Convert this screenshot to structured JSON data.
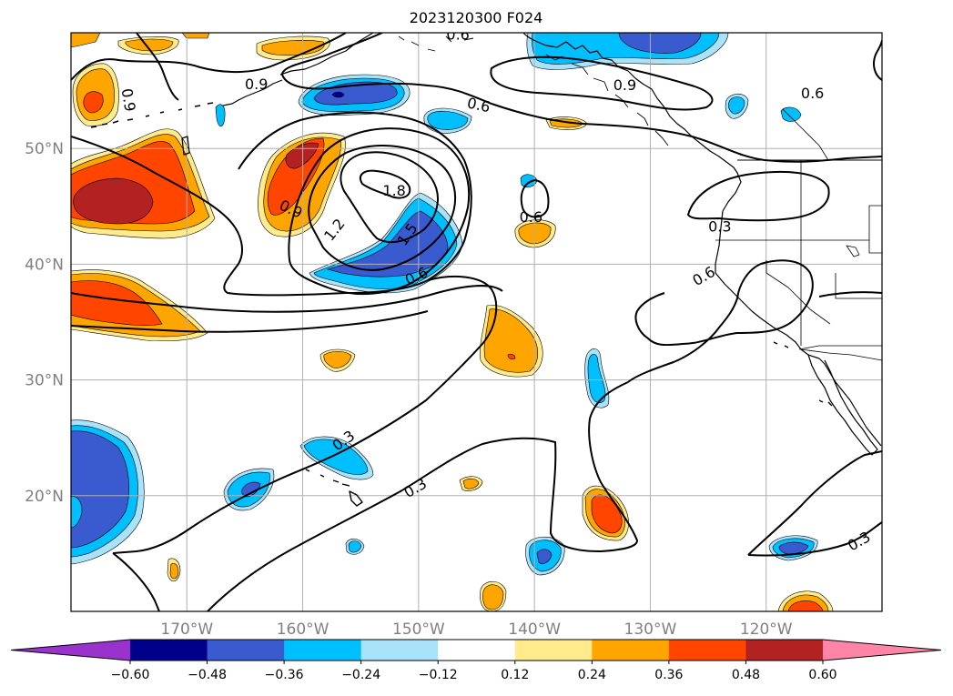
{
  "title": "2023120300 F024",
  "map": {
    "lon_range": [
      -180,
      -110
    ],
    "lat_range": [
      10,
      60
    ],
    "gridlines": true,
    "lon_ticks": [
      {
        "value": -170,
        "label": "170°W"
      },
      {
        "value": -160,
        "label": "160°W"
      },
      {
        "value": -150,
        "label": "150°W"
      },
      {
        "value": -140,
        "label": "140°W"
      },
      {
        "value": -130,
        "label": "130°W"
      },
      {
        "value": -120,
        "label": "120°W"
      }
    ],
    "lat_ticks": [
      {
        "value": 50,
        "label": "50°N"
      },
      {
        "value": 40,
        "label": "40°N"
      },
      {
        "value": 30,
        "label": "30°N"
      },
      {
        "value": 20,
        "label": "20°N"
      }
    ],
    "contour_labels": [
      {
        "text": "0.6",
        "lon": -146.6,
        "lat": 59.9,
        "angle": 0
      },
      {
        "text": "0.9",
        "lon": -164.0,
        "lat": 55.6,
        "angle": 0
      },
      {
        "text": "0.9",
        "lon": -175.0,
        "lat": 54.2,
        "angle": 80
      },
      {
        "text": "0.6",
        "lon": -144.8,
        "lat": 53.8,
        "angle": 12
      },
      {
        "text": "0.9",
        "lon": -132.2,
        "lat": 55.5,
        "angle": 0
      },
      {
        "text": "0.6",
        "lon": -116.0,
        "lat": 54.8,
        "angle": 0
      },
      {
        "text": "0.9",
        "lon": -161.0,
        "lat": 44.8,
        "angle": 25
      },
      {
        "text": "1.2",
        "lon": -157.3,
        "lat": 43.0,
        "angle": -52
      },
      {
        "text": "1.8",
        "lon": -152.1,
        "lat": 46.4,
        "angle": 0
      },
      {
        "text": "1.5",
        "lon": -151.0,
        "lat": 42.6,
        "angle": -55
      },
      {
        "text": "0.6",
        "lon": -150.2,
        "lat": 39.0,
        "angle": -25
      },
      {
        "text": "0.6",
        "lon": -140.3,
        "lat": 44.1,
        "angle": 0
      },
      {
        "text": "0.3",
        "lon": -124.0,
        "lat": 43.3,
        "angle": 0
      },
      {
        "text": "0.6",
        "lon": -125.4,
        "lat": 39.0,
        "angle": -30
      },
      {
        "text": "0.3",
        "lon": -156.5,
        "lat": 24.8,
        "angle": -35
      },
      {
        "text": "0.3",
        "lon": -150.3,
        "lat": 20.7,
        "angle": -30
      },
      {
        "text": "0.3",
        "lon": -112.0,
        "lat": 16.1,
        "angle": -30
      }
    ]
  },
  "colorbar": {
    "levels": [
      -0.72,
      -0.6,
      -0.48,
      -0.36,
      -0.24,
      -0.12,
      0.12,
      0.24,
      0.36,
      0.48,
      0.6,
      0.72
    ],
    "colors": [
      "#9933cc",
      "#00008b",
      "#3a5bcf",
      "#00bfff",
      "#a9e2fb",
      "#ffffff",
      "#ffea8c",
      "#ffa500",
      "#ff4500",
      "#b22222",
      "#ff85a8"
    ],
    "under_color": "#9933cc",
    "over_color": "#ff85a8",
    "extend": "both",
    "tick_labels": [
      "−0.60",
      "−0.48",
      "−0.36",
      "−0.24",
      "−0.12",
      "0.12",
      "0.24",
      "0.36",
      "0.48",
      "0.60"
    ]
  },
  "contour_color": "#000000",
  "coast_color": "#000000"
}
